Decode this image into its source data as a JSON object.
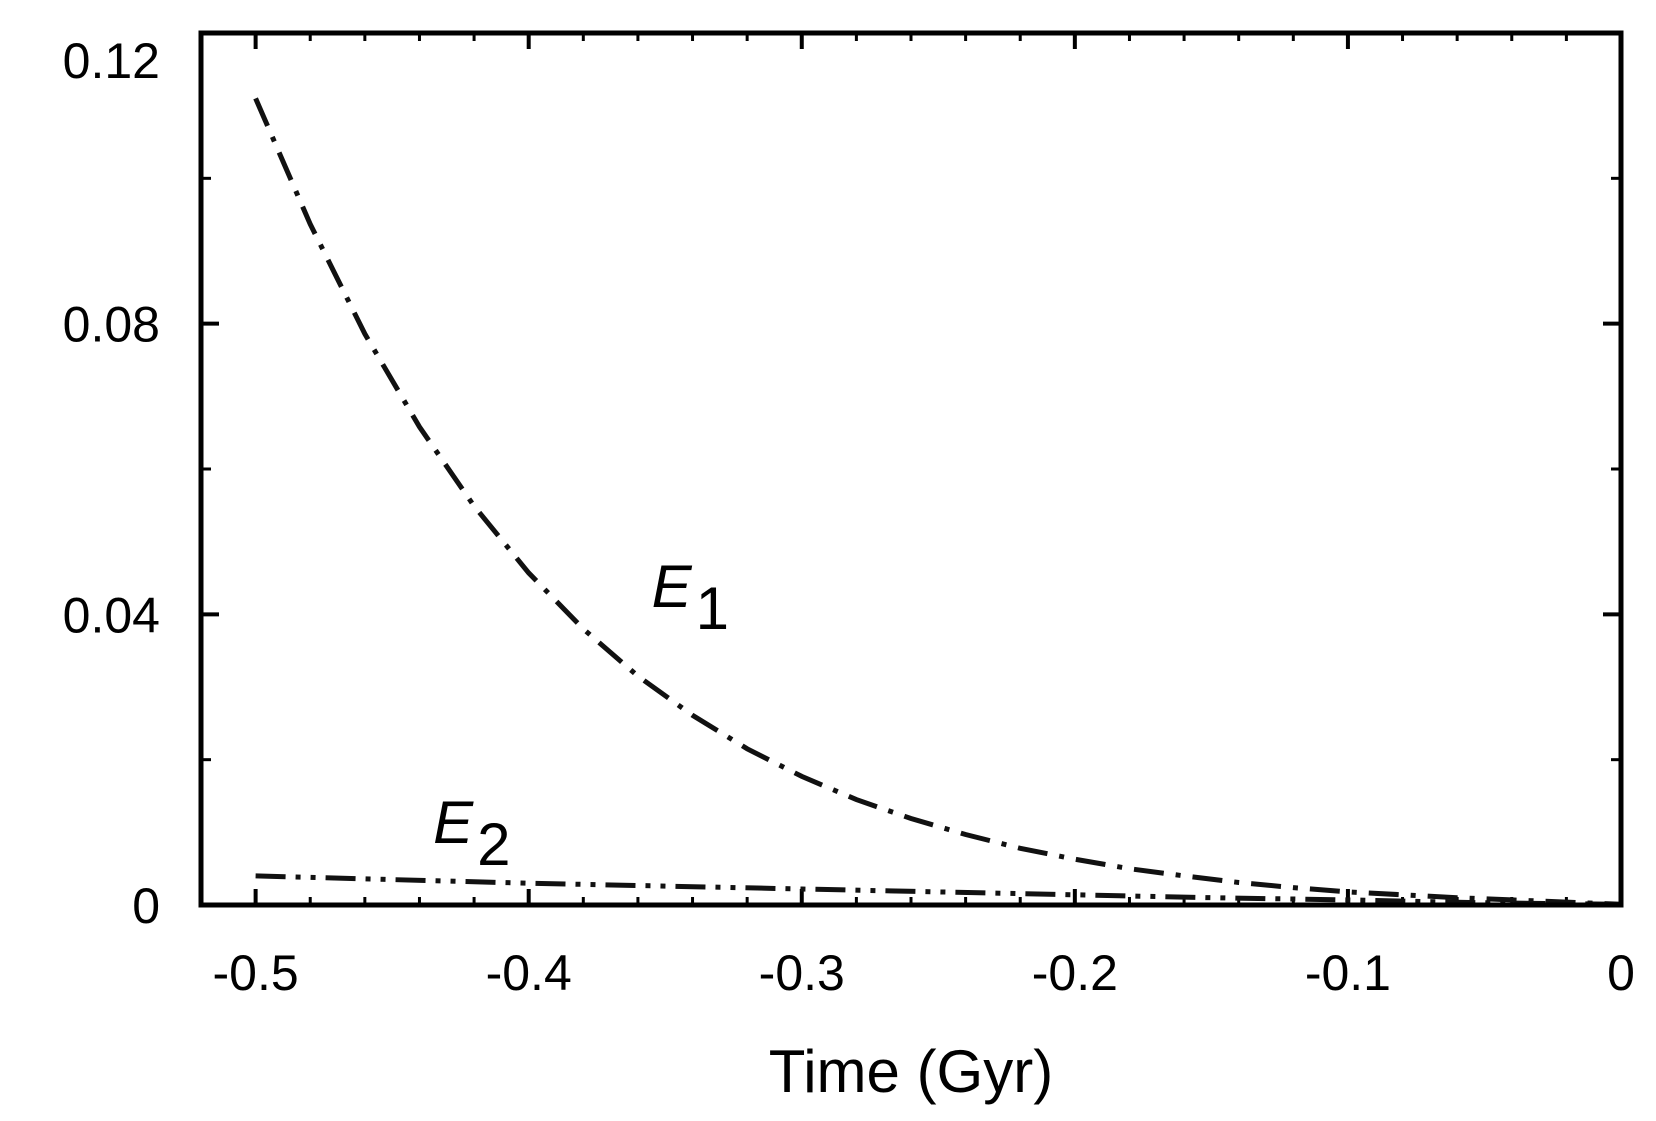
{
  "chart_data": {
    "type": "line",
    "title": "",
    "xlabel": "Time (Gyr)",
    "ylabel": "",
    "xlim": [
      -0.52,
      0
    ],
    "ylim": [
      0,
      0.12
    ],
    "grid": false,
    "legend": "none",
    "x_ticks": [
      -0.5,
      -0.4,
      -0.3,
      -0.2,
      -0.1,
      0
    ],
    "x_tick_labels": [
      "-0.5",
      "-0.4",
      "-0.3",
      "-0.2",
      "-0.1",
      "0"
    ],
    "x_minor_step": 0.02,
    "y_ticks": [
      0,
      0.04,
      0.08,
      0.12
    ],
    "y_tick_labels": [
      "0",
      "0.04",
      "0.08",
      "0.12"
    ],
    "y_minor_step": 0.02,
    "series": [
      {
        "name": "E1",
        "line_style": "dash-dot",
        "x": [
          -0.5,
          -0.48,
          -0.46,
          -0.44,
          -0.42,
          -0.4,
          -0.38,
          -0.36,
          -0.34,
          -0.32,
          -0.3,
          -0.28,
          -0.26,
          -0.24,
          -0.22,
          -0.2,
          -0.18,
          -0.16,
          -0.14,
          -0.12,
          -0.1,
          -0.08,
          -0.06,
          -0.04,
          -0.02,
          0
        ],
        "y": [
          0.111,
          0.0937,
          0.0786,
          0.0658,
          0.0549,
          0.0457,
          0.038,
          0.0315,
          0.0261,
          0.0215,
          0.0177,
          0.0145,
          0.0119,
          0.0097,
          0.0078,
          0.0063,
          0.005,
          0.004,
          0.0031,
          0.0024,
          0.0018,
          0.0014,
          0.001,
          0.0007,
          0.0004,
          0.0001
        ]
      },
      {
        "name": "E2",
        "line_style": "dash-dot-dot",
        "x": [
          -0.5,
          -0.45,
          -0.4,
          -0.35,
          -0.3,
          -0.25,
          -0.2,
          -0.15,
          -0.1,
          -0.05,
          0
        ],
        "y": [
          0.004,
          0.0035,
          0.003,
          0.0026,
          0.0022,
          0.0018,
          0.0014,
          0.001,
          0.0007,
          0.0003,
          0.0001
        ]
      }
    ],
    "annotations": [
      {
        "label_main": "E",
        "label_sub": "1",
        "x": -0.355,
        "y": 0.041
      },
      {
        "label_main": "E",
        "label_sub": "2",
        "x": -0.435,
        "y": 0.0085
      }
    ]
  }
}
